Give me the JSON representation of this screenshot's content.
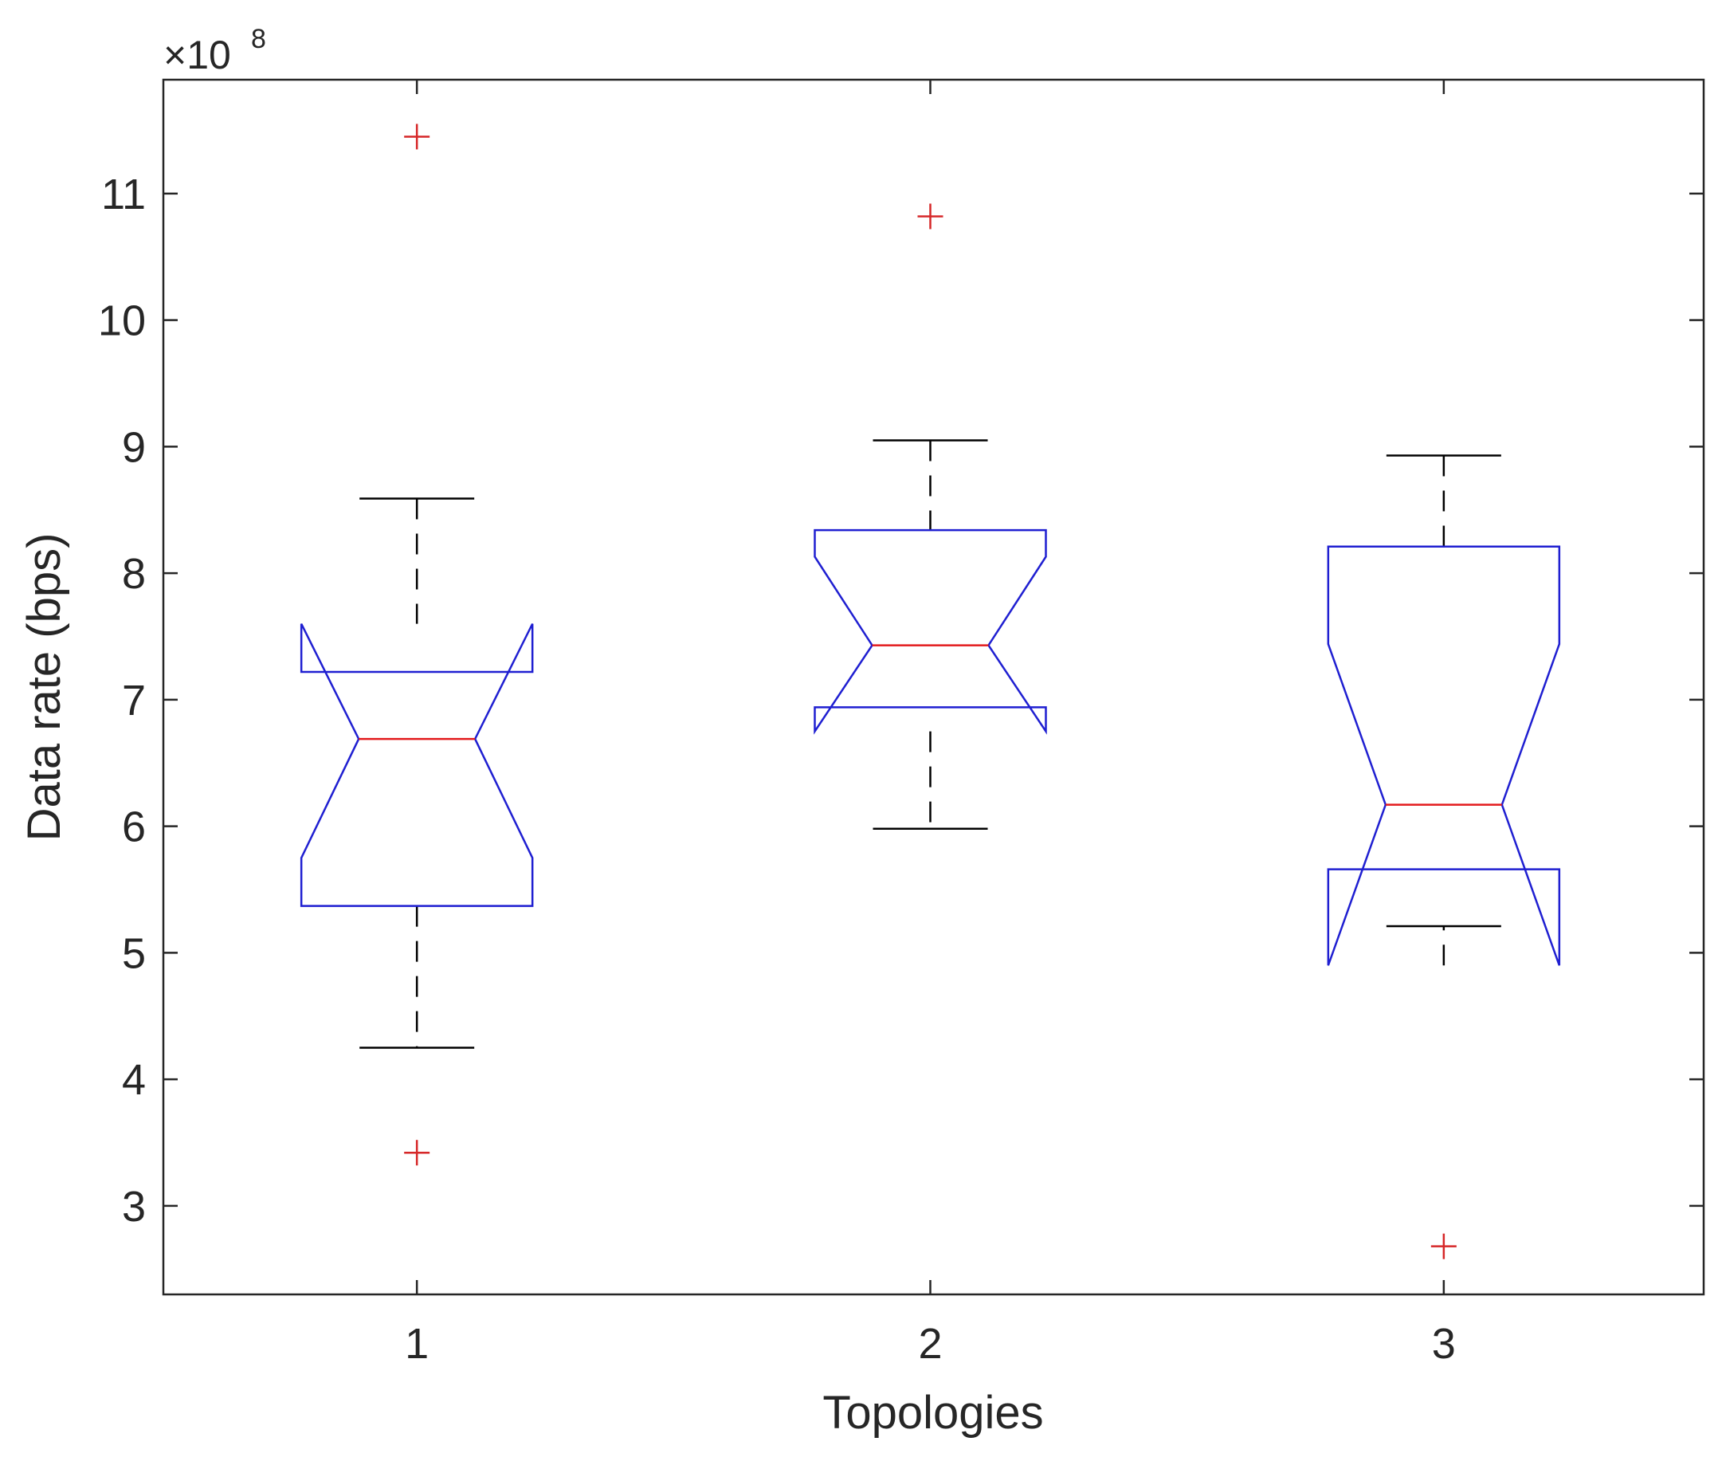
{
  "chart_data": {
    "type": "box",
    "notched": true,
    "categories": [
      "1",
      "2",
      "3"
    ],
    "xlabel": "Topologies",
    "ylabel": "Data rate (bps)",
    "exponent_label": {
      "base": "×10",
      "power": "8"
    },
    "ylim": [
      2.3,
      11.9
    ],
    "yticks": [
      3,
      4,
      5,
      6,
      7,
      8,
      9,
      10,
      11
    ],
    "ytick_labels": [
      "3",
      "4",
      "5",
      "6",
      "7",
      "8",
      "9",
      "10",
      "11"
    ],
    "grid": false,
    "boxes": [
      {
        "category": "1",
        "whisker_low": 4.25,
        "q1": 5.37,
        "median": 6.69,
        "q3": 7.22,
        "whisker_high": 8.59,
        "notch_low": 5.75,
        "notch_high": 7.6,
        "outliers": [
          11.45,
          3.42
        ]
      },
      {
        "category": "2",
        "whisker_low": 5.98,
        "q1": 6.94,
        "median": 7.43,
        "q3": 8.34,
        "whisker_high": 9.05,
        "notch_low": 6.75,
        "notch_high": 8.13,
        "outliers": [
          10.82
        ]
      },
      {
        "category": "3",
        "whisker_low": 5.21,
        "q1": 5.66,
        "median": 6.17,
        "q3": 8.21,
        "whisker_high": 8.93,
        "notch_low": 4.9,
        "notch_high": 7.44,
        "outliers": [
          2.68
        ]
      }
    ],
    "colors": {
      "box": "#1f1fd1",
      "median": "#e31a1c",
      "whisker": "#000000",
      "outlier": "#d62728",
      "axis": "#262626"
    }
  }
}
